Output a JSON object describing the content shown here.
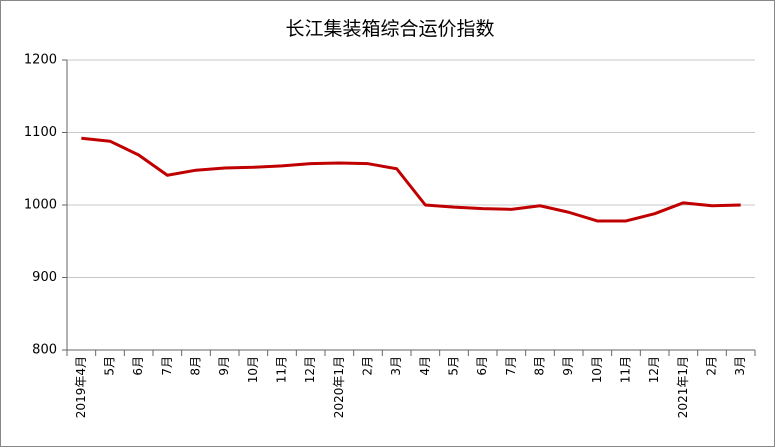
{
  "chart_data": {
    "type": "line",
    "title": "长江集装箱综合运价指数",
    "categories": [
      "2019年4月",
      "5月",
      "6月",
      "7月",
      "8月",
      "9月",
      "10月",
      "11月",
      "12月",
      "2020年1月",
      "2月",
      "3月",
      "4月",
      "5月",
      "6月",
      "7月",
      "8月",
      "9月",
      "10月",
      "11月",
      "12月",
      "2021年1月",
      "2月",
      "3月"
    ],
    "values": [
      1092,
      1088,
      1069,
      1041,
      1048,
      1051,
      1052,
      1054,
      1057,
      1058,
      1057,
      1050,
      1000,
      997,
      995,
      994,
      999,
      990,
      978,
      978,
      988,
      1003,
      999,
      1000
    ],
    "color": "#c00000",
    "ylim": [
      800,
      1200
    ],
    "yticks": [
      800,
      900,
      1000,
      1100,
      1200
    ],
    "grid": true
  }
}
